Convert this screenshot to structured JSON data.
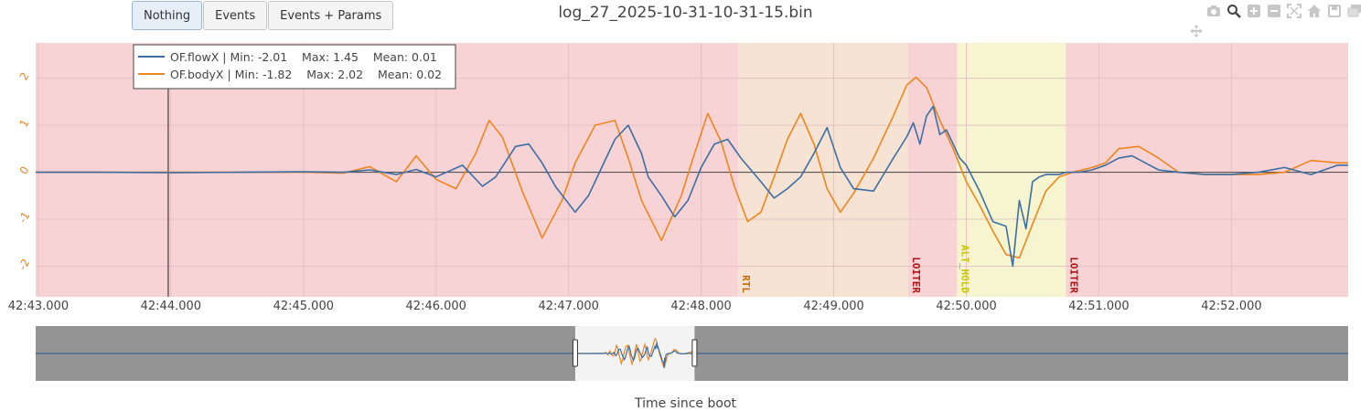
{
  "buttons": {
    "nothing_label": "Nothing",
    "events_label": "Events",
    "events_params_label": "Events + Params"
  },
  "title": "log_27_2025-10-31-10-31-15.bin",
  "modebar": [
    "camera-icon",
    "zoom-icon",
    "zoom-in-icon",
    "zoom-out-icon",
    "autoscale-icon",
    "home-icon",
    "save-icon",
    "compare-icon",
    "pan-icon"
  ],
  "chart_data": {
    "type": "line",
    "title": "log_27_2025-10-31-10-31-15.bin",
    "xlabel": "Time since boot",
    "ylabel": "",
    "xlim": [
      42.98,
      52.88
    ],
    "ylim": [
      -2.65,
      2.75
    ],
    "xticks": [
      "42:43.000",
      "42:44.000",
      "42:45.000",
      "42:46.000",
      "42:47.000",
      "42:48.000",
      "42:49.000",
      "42:50.000",
      "42:51.000",
      "42:52.000"
    ],
    "yticks": [
      "2",
      "1",
      "0",
      "-1",
      "-2"
    ],
    "legend": {
      "placement": "top-left",
      "entries": [
        "OF.flowX | Min: -2.01    Max: 1.45    Mean: 0.01",
        "OF.bodyX | Min: -1.82    Max: 2.02    Mean: 0.02"
      ]
    },
    "modes": [
      {
        "name": "",
        "start": 42.98,
        "end": 48.28,
        "color": "#f8d3d5",
        "label_color": ""
      },
      {
        "name": "RTL",
        "start": 48.28,
        "end": 49.56,
        "color": "#f7e3d3",
        "label_color": "#c46a0a"
      },
      {
        "name": "LOITER",
        "start": 49.56,
        "end": 49.93,
        "color": "#f8d3d5",
        "label_color": "#b01010"
      },
      {
        "name": "ALT_HOLD",
        "start": 49.93,
        "end": 50.75,
        "color": "#f6f5cf",
        "label_color": "#c8c400"
      },
      {
        "name": "LOITER",
        "start": 50.75,
        "end": 52.88,
        "color": "#f8d3d5",
        "label_color": "#b01010"
      }
    ],
    "cursor_x": 43.98,
    "series": [
      {
        "name": "OF.flowX",
        "color": "#3a6ea5",
        "x": [
          42.98,
          43.5,
          44.0,
          44.5,
          45.0,
          45.3,
          45.5,
          45.7,
          45.85,
          46.0,
          46.2,
          46.35,
          46.45,
          46.6,
          46.7,
          46.8,
          46.9,
          47.05,
          47.15,
          47.25,
          47.35,
          47.45,
          47.55,
          47.6,
          47.7,
          47.8,
          47.9,
          48.0,
          48.1,
          48.2,
          48.3,
          48.45,
          48.55,
          48.65,
          48.75,
          48.85,
          48.95,
          49.05,
          49.15,
          49.3,
          49.45,
          49.55,
          49.6,
          49.65,
          49.7,
          49.75,
          49.8,
          49.85,
          49.9,
          49.95,
          50.0,
          50.1,
          50.2,
          50.3,
          50.35,
          50.4,
          50.45,
          50.5,
          50.55,
          50.6,
          50.7,
          50.75,
          50.85,
          50.95,
          51.05,
          51.15,
          51.25,
          51.35,
          51.45,
          51.6,
          51.8,
          52.0,
          52.2,
          52.4,
          52.6,
          52.8,
          52.88
        ],
        "y": [
          0.0,
          0.0,
          -0.01,
          0.0,
          0.01,
          0.0,
          0.05,
          -0.05,
          0.06,
          -0.1,
          0.15,
          -0.3,
          -0.1,
          0.55,
          0.6,
          0.2,
          -0.3,
          -0.85,
          -0.5,
          0.1,
          0.7,
          1.0,
          0.4,
          -0.1,
          -0.5,
          -0.95,
          -0.6,
          0.1,
          0.6,
          0.7,
          0.3,
          -0.2,
          -0.55,
          -0.35,
          -0.1,
          0.4,
          0.95,
          0.1,
          -0.35,
          -0.4,
          0.3,
          0.75,
          1.05,
          0.6,
          1.2,
          1.4,
          0.8,
          0.9,
          0.6,
          0.3,
          0.15,
          -0.4,
          -1.05,
          -1.15,
          -2.0,
          -0.6,
          -1.2,
          -0.2,
          -0.1,
          -0.05,
          -0.05,
          0.0,
          0.0,
          0.05,
          0.15,
          0.3,
          0.35,
          0.2,
          0.05,
          0.0,
          -0.05,
          -0.05,
          0.0,
          0.1,
          -0.05,
          0.15,
          0.15
        ]
      },
      {
        "name": "OF.bodyX",
        "color": "#f0851e",
        "x": [
          42.98,
          43.5,
          44.0,
          44.5,
          45.0,
          45.3,
          45.5,
          45.7,
          45.85,
          46.0,
          46.15,
          46.3,
          46.4,
          46.5,
          46.65,
          46.8,
          46.95,
          47.05,
          47.2,
          47.35,
          47.45,
          47.55,
          47.7,
          47.85,
          47.95,
          48.05,
          48.15,
          48.25,
          48.35,
          48.45,
          48.55,
          48.65,
          48.75,
          48.85,
          48.95,
          49.05,
          49.15,
          49.3,
          49.45,
          49.55,
          49.62,
          49.7,
          49.8,
          49.9,
          50.0,
          50.1,
          50.2,
          50.3,
          50.4,
          50.5,
          50.6,
          50.7,
          50.8,
          50.95,
          51.05,
          51.15,
          51.3,
          51.45,
          51.6,
          51.8,
          52.0,
          52.2,
          52.4,
          52.6,
          52.8,
          52.88
        ],
        "y": [
          0.0,
          0.0,
          0.0,
          0.0,
          0.0,
          -0.02,
          0.12,
          -0.2,
          0.35,
          -0.15,
          -0.35,
          0.4,
          1.1,
          0.75,
          -0.4,
          -1.4,
          -0.6,
          0.2,
          1.0,
          1.1,
          0.3,
          -0.6,
          -1.45,
          -0.5,
          0.4,
          1.25,
          0.65,
          -0.3,
          -1.05,
          -0.85,
          -0.1,
          0.7,
          1.25,
          0.6,
          -0.35,
          -0.85,
          -0.45,
          0.3,
          1.2,
          1.85,
          2.02,
          1.8,
          1.1,
          0.5,
          -0.2,
          -0.7,
          -1.25,
          -1.75,
          -1.82,
          -1.1,
          -0.4,
          -0.1,
          0.0,
          0.1,
          0.2,
          0.5,
          0.55,
          0.3,
          0.0,
          -0.05,
          -0.05,
          -0.05,
          0.0,
          0.25,
          0.2,
          0.2
        ]
      }
    ],
    "rangeslider": {
      "window": [
        47.05,
        47.95
      ],
      "colors": {
        "background": "#949494",
        "window": "#f3f3f3",
        "line": "#8a5a2a"
      }
    }
  }
}
